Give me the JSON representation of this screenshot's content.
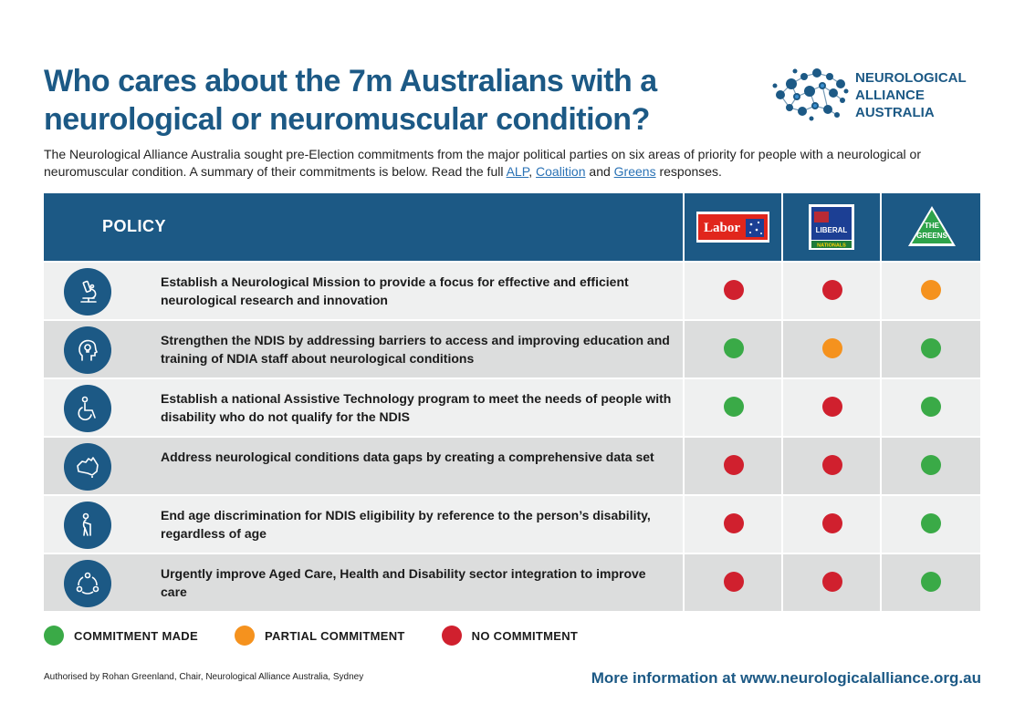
{
  "title": "Who cares about the 7m Australians with a neurological or neuromuscular condition?",
  "logo": {
    "line1": "NEUROLOGICAL",
    "line2": "ALLIANCE",
    "line3": "AUSTRALIA"
  },
  "intro": {
    "text": "The Neurological Alliance Australia sought pre-Election commitments from the major political parties on six areas of priority for people with a neurological or neuromuscular condition. A summary of their commitments is below. Read the full ",
    "link1": "ALP",
    "sep1": ", ",
    "link2": "Coalition",
    "sep2": " and ",
    "link3": "Greens",
    "tail": " responses."
  },
  "table": {
    "header_policy": "POLICY",
    "parties": [
      {
        "name": "Labor"
      },
      {
        "name": "LIBERAL",
        "sub": "NATIONALS"
      },
      {
        "name": "THE",
        "sub": "GREENS"
      }
    ],
    "rows": [
      {
        "icon": "microscope-icon",
        "text": "Establish a Neurological Mission to provide a focus for effective and efficient neurological research and innovation",
        "status": [
          "none",
          "none",
          "partial"
        ]
      },
      {
        "icon": "head-lightbulb-icon",
        "text": "Strengthen the NDIS by addressing barriers to access and improving education and training of NDIA staff about neurological conditions",
        "status": [
          "made",
          "partial",
          "made"
        ]
      },
      {
        "icon": "wheelchair-icon",
        "text": "Establish a national Assistive Technology program to meet the needs of people with disability who do not qualify for the NDIS",
        "status": [
          "made",
          "none",
          "made"
        ]
      },
      {
        "icon": "australia-map-icon",
        "text": "Address neurological conditions data gaps by creating a comprehensive data set",
        "status": [
          "none",
          "none",
          "made"
        ]
      },
      {
        "icon": "elderly-person-icon",
        "text": "End age discrimination for NDIS eligibility by reference to the person’s disability, regardless of age",
        "status": [
          "none",
          "none",
          "made"
        ]
      },
      {
        "icon": "integration-cycle-icon",
        "text": "Urgently improve Aged Care, Health and Disability sector integration to improve care",
        "status": [
          "none",
          "none",
          "made"
        ]
      }
    ]
  },
  "colors": {
    "made": "#3aaa47",
    "partial": "#f5921e",
    "none": "#d0202e",
    "brand": "#1c5985"
  },
  "legend": {
    "made": "COMMITMENT MADE",
    "partial": "PARTIAL COMMITMENT",
    "none": "NO COMMITMENT"
  },
  "footer": {
    "authorised": "Authorised by Rohan Greenland, Chair, Neurological Alliance Australia, Sydney",
    "more_info": "More information at www.neurologicalalliance.org.au"
  }
}
